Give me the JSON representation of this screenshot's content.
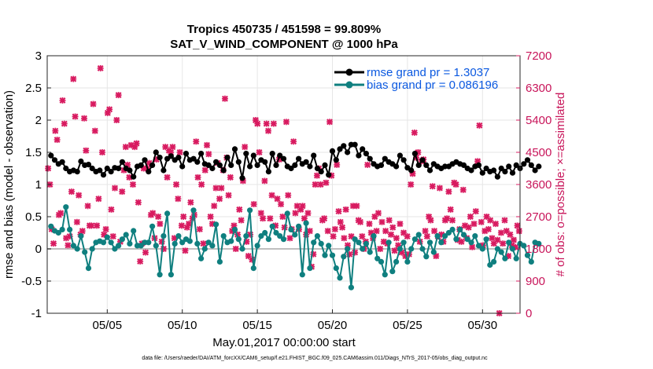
{
  "chart_data": {
    "type": "line",
    "title": "Tropics 450735 / 451598 = 99.809%",
    "subtitle": "SAT_V_WIND_COMPONENT @ 1000 hPa",
    "xlabel": "May.01,2017 00:00:00 start",
    "ylabel": "rmse and bias (model - observation)",
    "y2label": "# of obs: o=possible; ×=assimilated",
    "footer": "data file: /Users/raeder/DAI/ATM_forcXX/CAM6_setup/f.e21.FHIST_BGC.f09_025.CAM6assim.011/Diags_NTrS_2017-05/obs_diag_output.nc",
    "xlim": [
      1,
      32.5
    ],
    "ylim": [
      -1,
      3
    ],
    "y2lim": [
      0,
      7200
    ],
    "x_ticks": [
      5,
      10,
      15,
      20,
      25,
      30
    ],
    "x_tick_labels": [
      "05/05",
      "05/10",
      "05/15",
      "05/20",
      "05/25",
      "05/30"
    ],
    "y_ticks": [
      -1,
      -0.5,
      0,
      0.5,
      1,
      1.5,
      2,
      2.5,
      3
    ],
    "y_tick_labels": [
      "-1",
      "-0.5",
      "0",
      "0.5",
      "1",
      "1.5",
      "2",
      "2.5",
      "3"
    ],
    "y2_ticks": [
      0,
      900,
      1800,
      2700,
      3600,
      4500,
      5400,
      6300,
      7200
    ],
    "y2_tick_labels": [
      "0",
      "900",
      "1800",
      "2700",
      "3600",
      "4500",
      "5400",
      "6300",
      "7200"
    ],
    "x_step": 0.25,
    "x_start": 1.25,
    "colors": {
      "rmse": "#000000",
      "bias": "#0f7f7f",
      "obs": "#d81b60",
      "zero": "#bfbfbf",
      "grid": "#e6e6e6"
    },
    "series": [
      {
        "name": "rmse grand pr = 1.3037",
        "key": "rmse",
        "values": [
          1.45,
          1.38,
          1.32,
          1.35,
          1.25,
          1.2,
          1.22,
          1.2,
          1.36,
          1.3,
          1.31,
          1.25,
          1.2,
          1.22,
          1.15,
          1.25,
          1.2,
          1.26,
          1.25,
          1.35,
          1.25,
          1.22,
          1.12,
          1.28,
          1.3,
          1.38,
          1.2,
          1.3,
          1.5,
          1.42,
          1.22,
          1.4,
          1.44,
          1.38,
          1.42,
          1.28,
          1.48,
          1.38,
          1.4,
          1.35,
          1.48,
          1.32,
          1.3,
          1.25,
          1.35,
          1.3,
          1.22,
          1.42,
          1.3,
          1.55,
          1.35,
          1.1,
          1.48,
          1.28,
          1.45,
          1.3,
          1.38,
          1.35,
          1.2,
          1.48,
          1.3,
          1.45,
          1.4,
          1.28,
          1.25,
          1.3,
          1.4,
          1.32,
          1.35,
          1.28,
          1.45,
          1.25,
          1.2,
          1.3,
          1.15,
          1.52,
          1.38,
          1.55,
          1.6,
          1.5,
          1.62,
          1.62,
          1.45,
          1.55,
          1.48,
          1.4,
          1.32,
          1.28,
          1.3,
          1.4,
          1.35,
          1.32,
          1.28,
          1.45,
          1.38,
          1.26,
          1.22,
          1.48,
          1.3,
          1.38,
          1.3,
          1.22,
          1.32,
          1.28,
          1.25,
          1.28,
          1.28,
          1.32,
          1.35,
          1.32,
          1.3,
          1.25,
          1.22,
          1.28,
          1.3,
          1.18,
          1.25,
          1.2,
          1.22,
          1.12,
          1.25,
          1.2,
          1.28,
          1.18,
          1.3,
          1.25,
          1.32,
          1.38,
          1.3,
          1.22,
          1.28
        ]
      },
      {
        "name": "bias grand pr = 0.086196",
        "key": "bias",
        "values": [
          0.35,
          0.28,
          0.25,
          0.3,
          0.65,
          0.3,
          0.05,
          0.0,
          0.2,
          -0.05,
          -0.3,
          0.0,
          0.1,
          0.12,
          0.1,
          0.18,
          0.1,
          0.0,
          0.05,
          0.15,
          0.22,
          0.08,
          0.28,
          0.05,
          0.05,
          0.1,
          0.1,
          0.35,
          0.05,
          -0.4,
          0.2,
          0.55,
          -0.4,
          0.08,
          0.2,
          0.1,
          0.15,
          0.12,
          0.6,
          0.08,
          -0.15,
          0.0,
          0.1,
          0.05,
          0.38,
          -0.2,
          0.2,
          0.1,
          0.12,
          0.3,
          0.15,
          0.0,
          0.2,
          0.6,
          -0.3,
          0.05,
          0.2,
          0.25,
          0.15,
          0.35,
          0.25,
          0.2,
          0.15,
          0.55,
          0.3,
          0.22,
          0.35,
          -0.4,
          0.4,
          -0.3,
          0.1,
          0.2,
          0.08,
          -0.1,
          0.05,
          -0.1,
          -0.3,
          -0.45,
          -0.12,
          0.0,
          -0.6,
          0.15,
          0.1,
          0.0,
          0.08,
          -0.05,
          0.2,
          -0.15,
          -0.2,
          -0.4,
          0.1,
          -0.35,
          -0.2,
          0.0,
          0.1,
          -0.2,
          0.0,
          0.15,
          0.22,
          0.0,
          -0.12,
          0.1,
          -0.05,
          0.2,
          0.1,
          0.2,
          0.25,
          0.3,
          0.15,
          0.3,
          0.22,
          0.15,
          0.1,
          0.2,
          0.05,
          0.0,
          0.15,
          -0.25,
          -0.2,
          0.0,
          -0.05,
          -0.15,
          0.1,
          0.0,
          -0.15,
          0.08,
          0.05,
          -0.1,
          -0.2,
          0.1,
          0.08
        ]
      },
      {
        "name": "obs",
        "key": "obs",
        "values": [
          4050,
          3600,
          2350,
          1950,
          5100,
          4850,
          2750,
          2800,
          5950,
          5300,
          2100,
          1900,
          2150,
          3400,
          6550,
          5500,
          2550,
          3300,
          2200,
          2300,
          5450,
          4550,
          3000,
          2450,
          2450,
          5850,
          5100,
          2450,
          3200,
          6850,
          4500,
          2200,
          2350,
          5600,
          5700,
          2900,
          2150,
          3500,
          5400,
          6100,
          2000,
          3400,
          4000,
          4650,
          4150,
          3800,
          4700,
          3600,
          4650,
          4750,
          3100,
          1450,
          1950,
          4050,
          1700,
          4050,
          4200,
          2750,
          2800,
          2100,
          4300,
          2700,
          2500,
          2000,
          1800,
          4650,
          3800,
          4550,
          4500,
          4650,
          2100,
          3600,
          3200,
          4500,
          2450,
          2700,
          1750,
          2400,
          2500,
          3100,
          2650,
          2750,
          4800,
          3800,
          2350,
          3600,
          1950,
          4000,
          4700,
          4450,
          2700,
          2500,
          3000,
          3500,
          4200,
          3200,
          3500,
          4000,
          6000,
          4350,
          3300,
          3800,
          2300,
          2450,
          1800,
          2200,
          2900,
          2600,
          3700,
          4650,
          2000,
          1600,
          2200,
          1500,
          3050,
          5400,
          5300,
          4500,
          2800,
          2650,
          3700,
          5300,
          5100,
          2650,
          3300,
          5300,
          2450,
          3200,
          4300,
          3050,
          2700,
          2400,
          5350,
          3300,
          2100,
          2350,
          4800,
          2800,
          3000,
          2350,
          2900,
          3000,
          2650,
          2200,
          2800,
          2300,
          1300,
          1650,
          3600,
          3850,
          4050,
          3600,
          2600,
          2650,
          3650,
          2300,
          5350,
          3850,
          2150,
          2350,
          4150,
          2850,
          2550,
          2400,
          2100,
          2900,
          1900,
          1650,
          2150,
          3000,
          1700,
          3000,
          2600,
          2550,
          2150,
          1800,
          2000,
          4150,
          2500,
          2250,
          2100,
          2700,
          2300,
          2800,
          1800,
          2550,
          2000,
          2300,
          1950,
          2600,
          2200,
          2400,
          1750,
          2100,
          1900,
          2500,
          1700,
          2250,
          1600,
          2150,
          1650,
          3600,
          3900,
          5050,
          4350,
          4500,
          2000,
          4250,
          4300,
          2300,
          2150,
          2700,
          2600,
          3550,
          2300,
          1600,
          2150,
          3500,
          2200,
          2000,
          2600,
          2650,
          3400,
          2900,
          2600,
          3650,
          3600,
          2050,
          2350,
          2000,
          3450,
          2450,
          2100,
          2400,
          2700,
          1850,
          2500,
          2850,
          4250,
          5250,
          2550,
          1900,
          2300,
          2700,
          2350,
          2600,
          2100,
          1950,
          2500,
          2050,
          0,
          2250,
          1950,
          2600,
          2300,
          1600,
          2200,
          1900,
          2050,
          1850,
          2450,
          2300
        ]
      }
    ],
    "legend": [
      "rmse grand pr = 1.3037",
      "bias grand pr = 0.086196"
    ]
  }
}
